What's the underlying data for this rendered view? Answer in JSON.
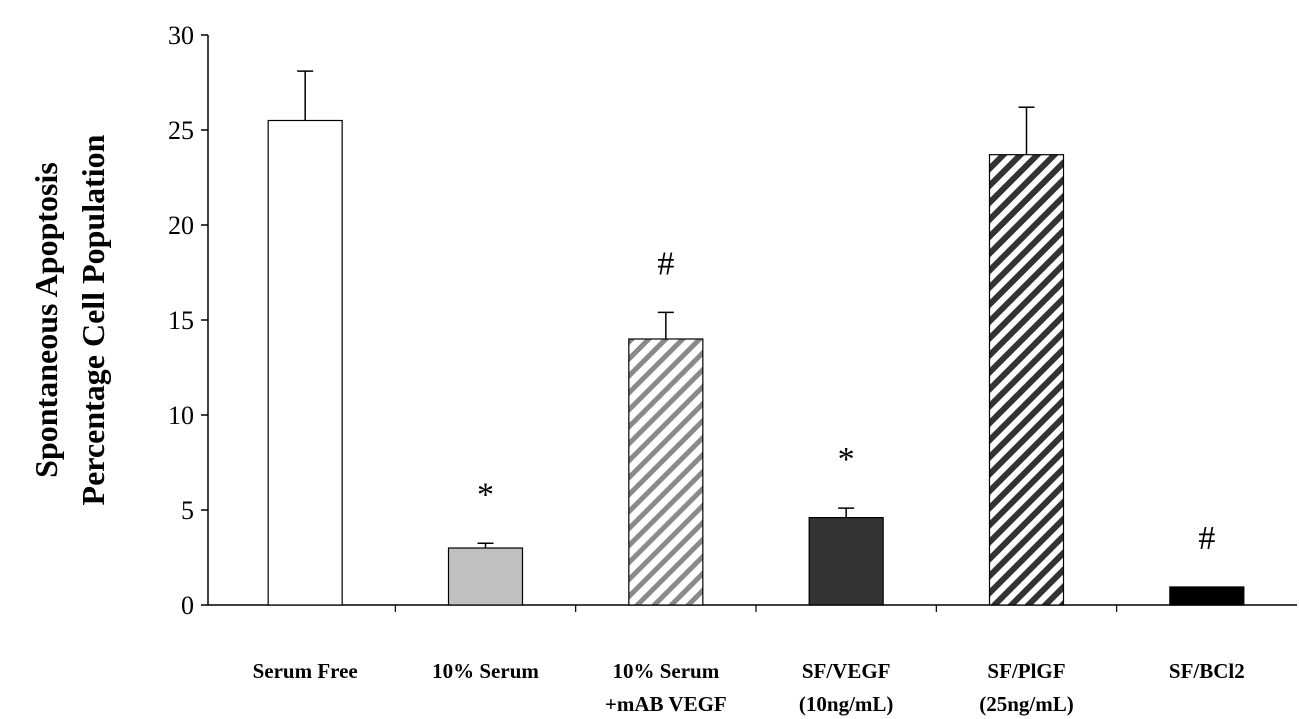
{
  "chart_data": {
    "type": "bar",
    "title": "",
    "xlabel": "",
    "ylabel_lines": [
      "Spontaneous Apoptosis",
      "Percentage Cell Population"
    ],
    "ylim": [
      0,
      30
    ],
    "yticks": [
      "0",
      "5",
      "10",
      "15",
      "20",
      "25",
      "30"
    ],
    "grid": false,
    "legend": "none",
    "categories": [
      {
        "lines": [
          "Serum Free"
        ]
      },
      {
        "lines": [
          "10% Serum"
        ]
      },
      {
        "lines": [
          "10% Serum",
          "+mAB VEGF"
        ]
      },
      {
        "lines": [
          "SF/VEGF",
          "(10ng/mL)"
        ]
      },
      {
        "lines": [
          "SF/PlGF",
          "(25ng/mL)"
        ]
      },
      {
        "lines": [
          "SF/BCl2"
        ]
      }
    ],
    "values": [
      25.5,
      3.0,
      14.0,
      4.6,
      23.7,
      0.95
    ],
    "errors": [
      2.6,
      0.25,
      1.4,
      0.5,
      2.5,
      0
    ],
    "annotations": [
      "",
      "*",
      "#",
      "*",
      "",
      "#"
    ],
    "bar_styles": [
      {
        "fill": "#ffffff",
        "pattern": "none"
      },
      {
        "fill": "#c0c0c0",
        "pattern": "none"
      },
      {
        "fill": "#ffffff",
        "pattern": "hatch-light",
        "hatch_color": "#8a8a8a"
      },
      {
        "fill": "#333333",
        "pattern": "none"
      },
      {
        "fill": "#ffffff",
        "pattern": "hatch-dark",
        "hatch_color": "#333333"
      },
      {
        "fill": "#000000",
        "pattern": "none"
      }
    ]
  }
}
